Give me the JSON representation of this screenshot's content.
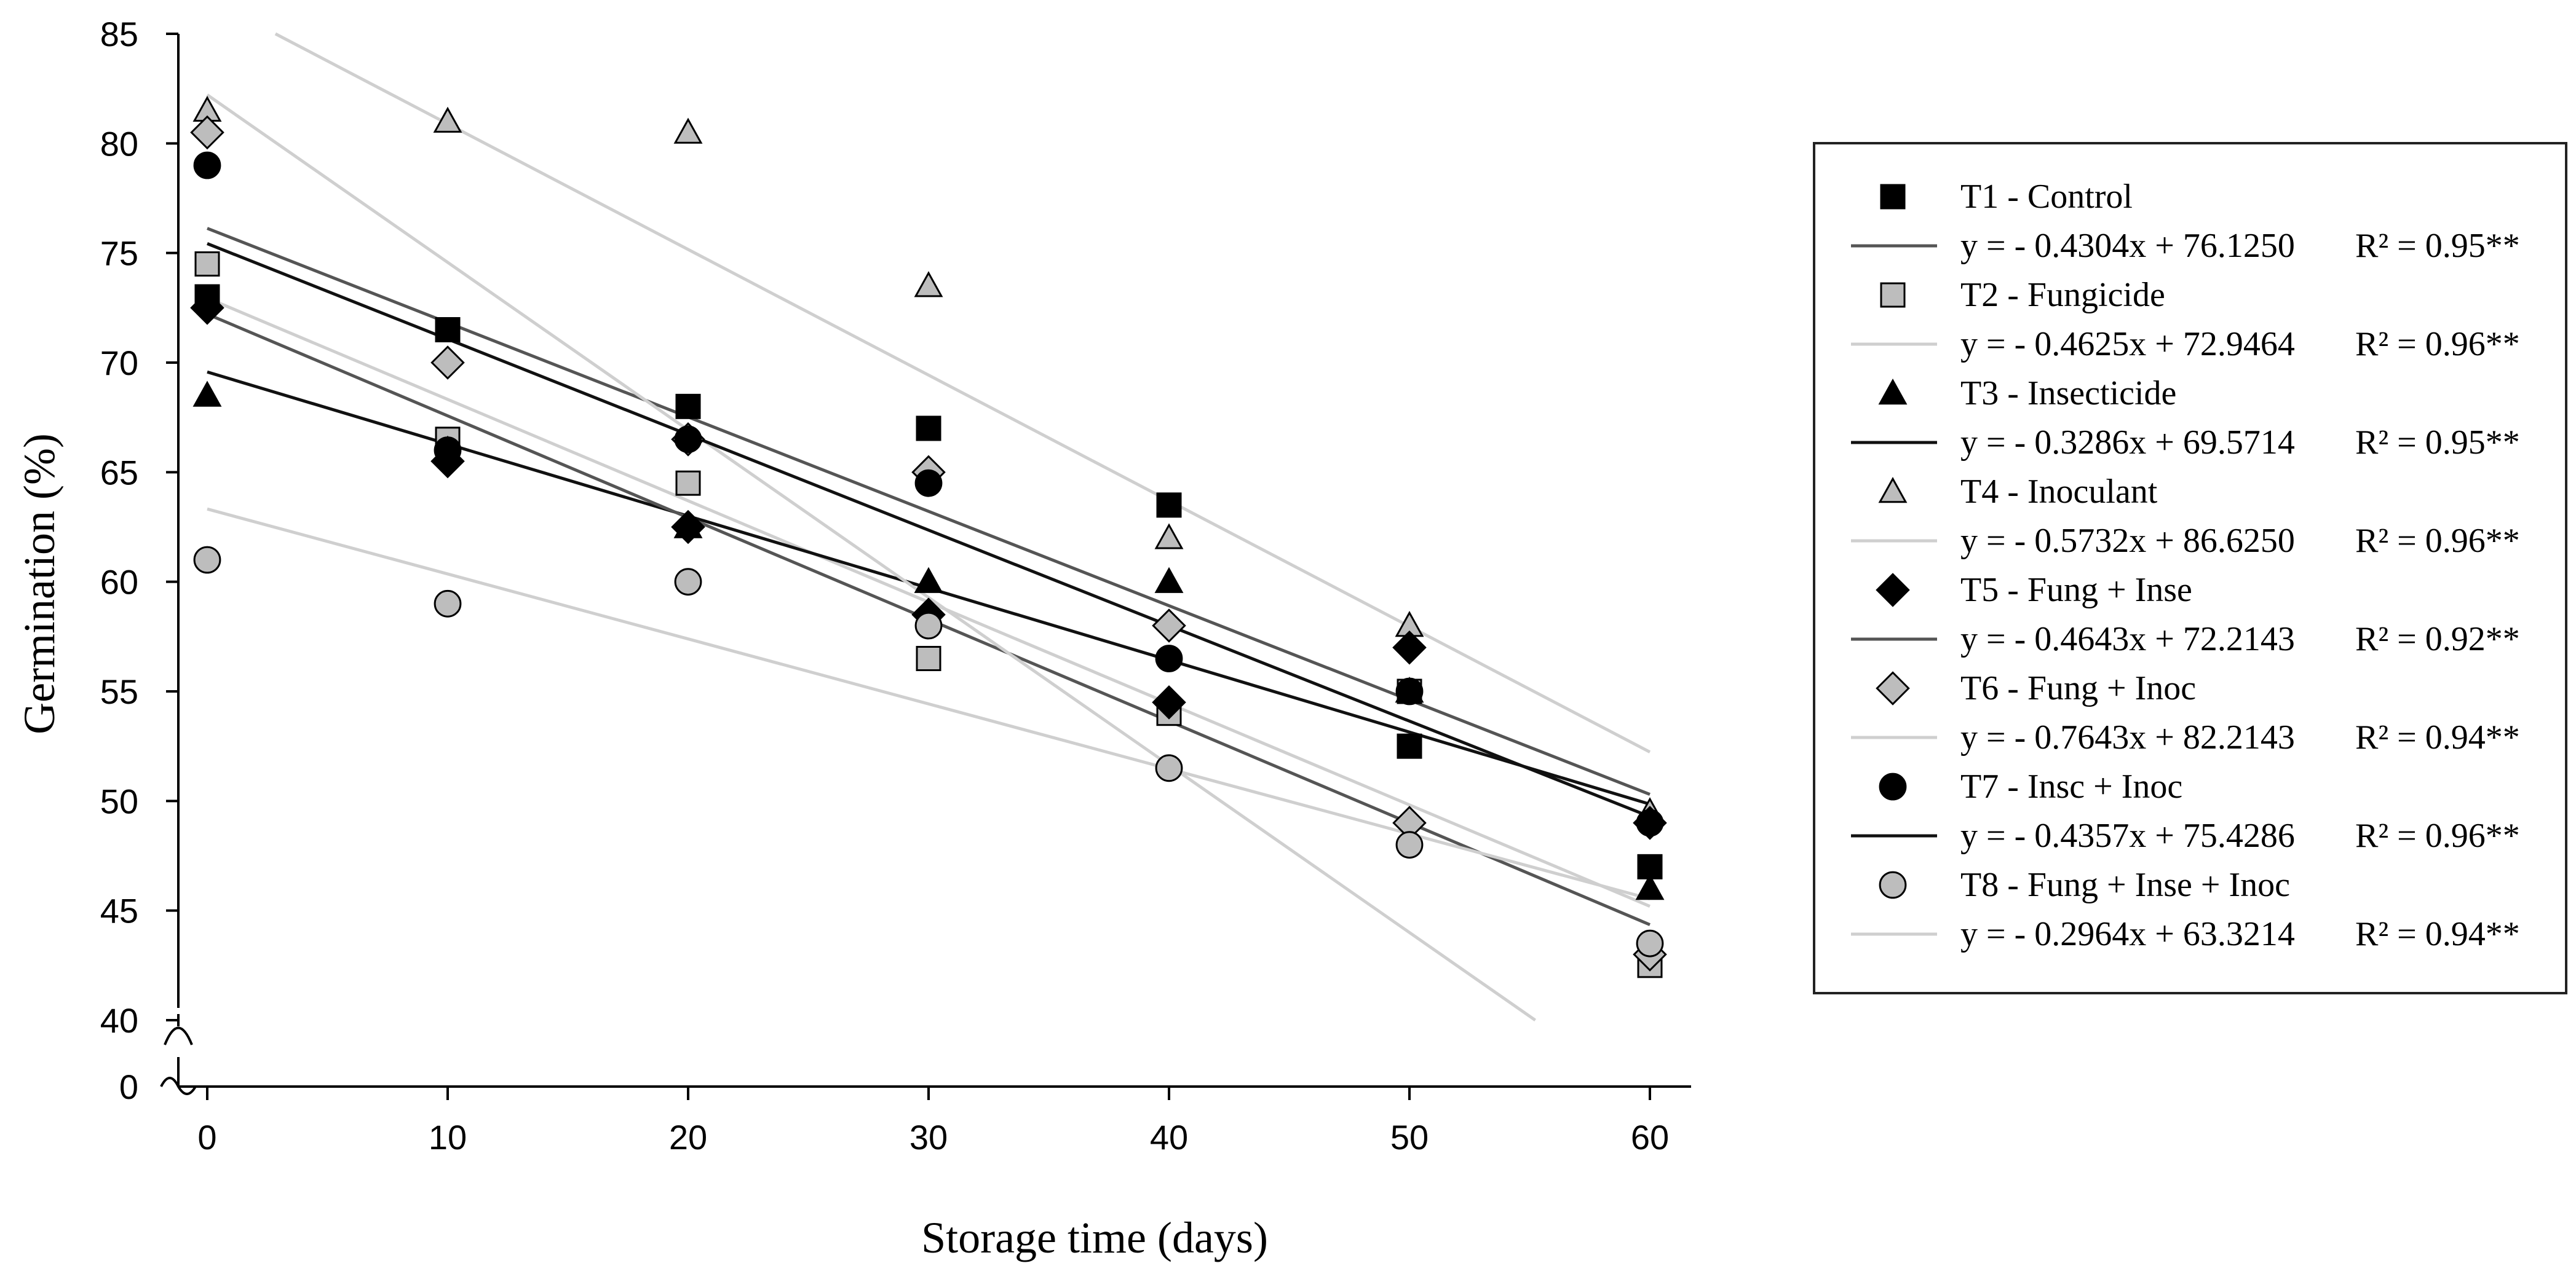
{
  "chart_data": {
    "type": "scatter",
    "title": "",
    "xlabel": "Storage time (days)",
    "ylabel": "Germination (%)",
    "x": [
      0,
      10,
      20,
      30,
      40,
      50,
      60
    ],
    "xlim": [
      0,
      60
    ],
    "ylim": [
      40,
      85
    ],
    "y_axis_break": true,
    "y_ticks": [
      40,
      45,
      50,
      55,
      60,
      65,
      70,
      75,
      80,
      85
    ],
    "y_ticks_below_break": [
      0
    ],
    "x_ticks": [
      0,
      10,
      20,
      30,
      40,
      50,
      60
    ],
    "legend_position": "right",
    "series": [
      {
        "name": "T1 - Control",
        "marker": "square",
        "fill": "#000000",
        "line_color": "#555555",
        "values": [
          73,
          71.5,
          68,
          67,
          63.5,
          52.5,
          47
        ],
        "extra_points": [
          [
            50,
            55
          ]
        ],
        "equation": "y = - 0.4304x + 76.1250",
        "r2": "R² = 0.95**",
        "slope": -0.4304,
        "intercept": 76.125
      },
      {
        "name": "T2 - Fungicide",
        "marker": "square",
        "fill": "#bdbdbd",
        "line_color": "#cfcfcf",
        "values": [
          74.5,
          66.5,
          64.5,
          56.5,
          54,
          55,
          42.5
        ],
        "equation": "y = - 0.4625x + 72.9464",
        "r2": "R² = 0.96**",
        "slope": -0.4625,
        "intercept": 72.9464
      },
      {
        "name": "T3 - Insecticide",
        "marker": "triangle",
        "fill": "#000000",
        "line_color": "#111111",
        "values": [
          68.5,
          66,
          62.5,
          60,
          60,
          55,
          46
        ],
        "equation": "y = - 0.3286x + 69.5714",
        "r2": "R² = 0.95**",
        "slope": -0.3286,
        "intercept": 69.5714
      },
      {
        "name": "T4 - Inoculant",
        "marker": "triangle",
        "fill": "#bdbdbd",
        "line_color": "#cfcfcf",
        "values": [
          81.5,
          81,
          80.5,
          73.5,
          62,
          58,
          49.5
        ],
        "equation": "y = - 0.5732x + 86.6250",
        "r2": "R² = 0.96**",
        "slope": -0.5732,
        "intercept": 86.625
      },
      {
        "name": "T5 - Fung + Inse",
        "marker": "diamond",
        "fill": "#000000",
        "line_color": "#555555",
        "values": [
          72.5,
          65.5,
          62.5,
          58.5,
          54.5,
          57,
          49
        ],
        "equation": "y = - 0.4643x + 72.2143",
        "r2": "R² = 0.92**",
        "slope": -0.4643,
        "intercept": 72.2143
      },
      {
        "name": "T6 - Fung + Inoc",
        "marker": "diamond",
        "fill": "#bdbdbd",
        "line_color": "#cfcfcf",
        "values": [
          80.5,
          70,
          66.5,
          65,
          58,
          49,
          43
        ],
        "equation": "y = - 0.7643x + 82.2143",
        "r2": "R² = 0.94**",
        "slope": -0.7643,
        "intercept": 82.2143
      },
      {
        "name": "T7 - Insc  + Inoc",
        "marker": "circle",
        "fill": "#000000",
        "line_color": "#111111",
        "values": [
          79,
          66,
          66.5,
          64.5,
          56.5,
          55,
          49
        ],
        "equation": "y = - 0.4357x + 75.4286",
        "r2": "R² = 0.96**",
        "slope": -0.4357,
        "intercept": 75.4286
      },
      {
        "name": "T8 - Fung + Inse  + Inoc",
        "marker": "circle",
        "fill": "#bdbdbd",
        "line_color": "#cfcfcf",
        "values": [
          61,
          59,
          60,
          58,
          51.5,
          48,
          43.5
        ],
        "equation": "y = - 0.2964x + 63.3214",
        "r2": "R² = 0.94**",
        "slope": -0.2964,
        "intercept": 63.3214
      }
    ]
  }
}
